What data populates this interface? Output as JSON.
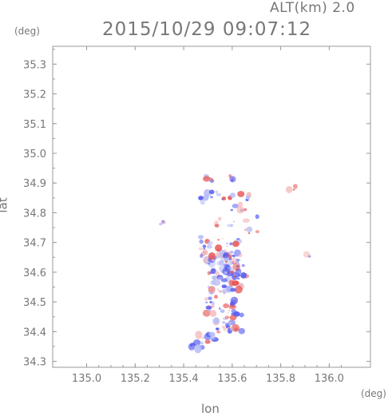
{
  "header": {
    "altitude_label": "ALT(km) 2.0",
    "datetime": "2015/10/29 09:07:12"
  },
  "axes": {
    "y_unit": "(deg)",
    "x_unit": "(deg)",
    "y_title": "lat",
    "x_title": "lon",
    "x_range": [
      134.86,
      136.17
    ],
    "y_range": [
      34.28,
      35.36
    ],
    "x_ticks": [
      "135.0",
      "135.2",
      "135.4",
      "135.6",
      "135.8",
      "136.0"
    ],
    "y_ticks": [
      "34.3",
      "34.4",
      "34.5",
      "34.6",
      "34.7",
      "34.8",
      "34.9",
      "35.0",
      "35.1",
      "35.2",
      "35.3"
    ],
    "grid": true
  },
  "colors": {
    "frame": "#999999",
    "text": "#777777",
    "blue": "#5a5ff0",
    "light_blue": "#b8bdf5",
    "red": "#e85858",
    "light_red": "#f5b8b8"
  },
  "field": {
    "description_kind": "doppler-velocity-scatter",
    "clusters": [
      {
        "lon": 135.51,
        "lat": 34.915,
        "n": 6,
        "spread": [
          0.02,
          0.01
        ]
      },
      {
        "lon": 135.6,
        "lat": 34.915,
        "n": 4,
        "spread": [
          0.01,
          0.01
        ]
      },
      {
        "lon": 135.52,
        "lat": 34.855,
        "n": 10,
        "spread": [
          0.05,
          0.02
        ]
      },
      {
        "lon": 135.64,
        "lat": 34.835,
        "n": 12,
        "spread": [
          0.05,
          0.03
        ]
      },
      {
        "lon": 135.57,
        "lat": 34.77,
        "n": 6,
        "spread": [
          0.04,
          0.02
        ]
      },
      {
        "lon": 135.68,
        "lat": 34.76,
        "n": 6,
        "spread": [
          0.03,
          0.03
        ]
      },
      {
        "lon": 135.31,
        "lat": 34.765,
        "n": 3,
        "spread": [
          0.01,
          0.01
        ]
      },
      {
        "lon": 135.85,
        "lat": 34.88,
        "n": 3,
        "spread": [
          0.02,
          0.01
        ]
      },
      {
        "lon": 135.91,
        "lat": 34.655,
        "n": 2,
        "spread": [
          0.01,
          0.005
        ]
      },
      {
        "lon": 135.55,
        "lat": 34.68,
        "n": 40,
        "spread": [
          0.08,
          0.04
        ]
      },
      {
        "lon": 135.58,
        "lat": 34.62,
        "n": 50,
        "spread": [
          0.08,
          0.04
        ]
      },
      {
        "lon": 135.57,
        "lat": 34.56,
        "n": 35,
        "spread": [
          0.07,
          0.03
        ]
      },
      {
        "lon": 135.55,
        "lat": 34.49,
        "n": 25,
        "spread": [
          0.06,
          0.03
        ]
      },
      {
        "lon": 135.58,
        "lat": 34.43,
        "n": 25,
        "spread": [
          0.06,
          0.03
        ]
      },
      {
        "lon": 135.5,
        "lat": 34.38,
        "n": 12,
        "spread": [
          0.05,
          0.02
        ]
      },
      {
        "lon": 135.46,
        "lat": 34.35,
        "n": 6,
        "spread": [
          0.03,
          0.01
        ]
      }
    ]
  }
}
